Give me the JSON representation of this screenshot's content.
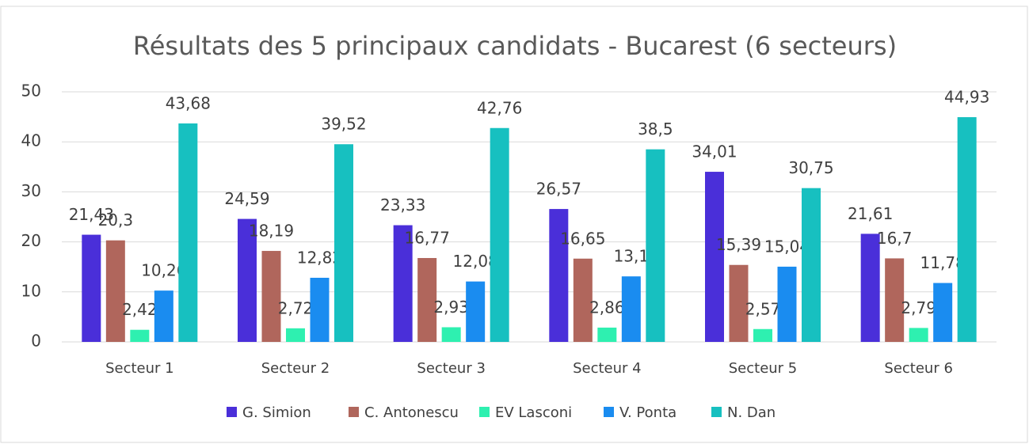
{
  "chart_data": {
    "type": "bar",
    "title": "Résultats des 5 principaux candidats - Bucarest (6 secteurs)",
    "categories": [
      "Secteur 1",
      "Secteur 2",
      "Secteur 3",
      "Secteur 4",
      "Secteur 5",
      "Secteur 6"
    ],
    "series": [
      {
        "name": "G. Simion",
        "color": "#4a2fd9",
        "values": [
          21.43,
          24.59,
          23.33,
          26.57,
          34.01,
          21.61
        ],
        "value_labels": [
          "21,43",
          "24,59",
          "23,33",
          "26,57",
          "34,01",
          "21,61"
        ]
      },
      {
        "name": "C. Antonescu",
        "color": "#b0665c",
        "values": [
          20.3,
          18.19,
          16.77,
          16.65,
          15.39,
          16.7
        ],
        "value_labels": [
          "20,3",
          "18,19",
          "16,77",
          "16,65",
          "15,39",
          "16,7"
        ]
      },
      {
        "name": "EV Lasconi",
        "color": "#2ef0b0",
        "values": [
          2.42,
          2.72,
          2.93,
          2.86,
          2.57,
          2.79
        ],
        "value_labels": [
          "2,42",
          "2,72",
          "2,93",
          "2,86",
          "2,57",
          "2,79"
        ]
      },
      {
        "name": "V. Ponta",
        "color": "#1a8cf0",
        "values": [
          10.26,
          12.82,
          12.08,
          13.1,
          15.04,
          11.78
        ],
        "value_labels": [
          "10,26",
          "12,82",
          "12,08",
          "13,1",
          "15,04",
          "11,78"
        ]
      },
      {
        "name": "N. Dan",
        "color": "#17c0c0",
        "values": [
          43.68,
          39.52,
          42.76,
          38.5,
          30.75,
          44.93
        ],
        "value_labels": [
          "43,68",
          "39,52",
          "42,76",
          "38,5",
          "30,75",
          "44,93"
        ]
      }
    ],
    "ylim": [
      0,
      50
    ],
    "yticks": [
      0,
      10,
      20,
      30,
      40,
      50
    ],
    "grid": true,
    "legend": "bottom"
  }
}
